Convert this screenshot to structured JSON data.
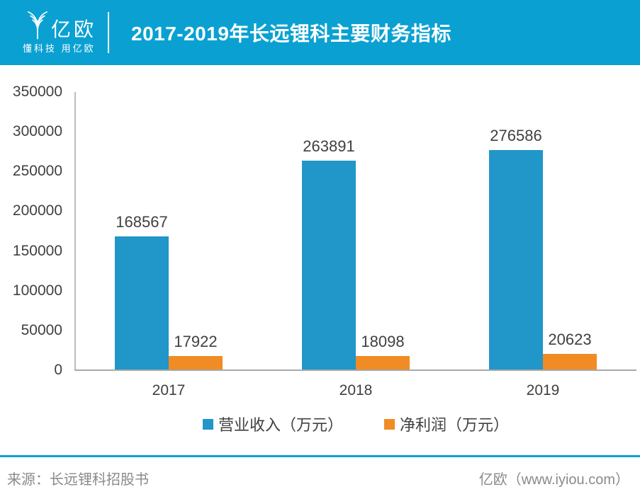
{
  "header": {
    "brand": "亿欧",
    "tagline": "懂科技 用亿欧",
    "title": "2017-2019年长远锂科主要财务指标"
  },
  "chart_data": {
    "type": "bar",
    "title": "2017-2019年长远锂科主要财务指标",
    "categories": [
      "2017",
      "2018",
      "2019"
    ],
    "series": [
      {
        "name": "营业收入（万元）",
        "color": "#2196C8",
        "values": [
          168567,
          263891,
          276586
        ]
      },
      {
        "name": "净利润（万元）",
        "color": "#F08C23",
        "values": [
          17922,
          18098,
          20623
        ]
      }
    ],
    "ylim": [
      0,
      350000
    ],
    "yticks": [
      0,
      50000,
      100000,
      150000,
      200000,
      250000,
      300000,
      350000
    ],
    "grid": false,
    "legend_position": "bottom",
    "value_labels": true
  },
  "footer": {
    "source": "来源：长远锂科招股书",
    "credit": "亿欧（www.iyiou.com）"
  },
  "colors": {
    "accent": "#0AA1D2",
    "bar_blue": "#2196C8",
    "bar_orange": "#F08C23",
    "label_text": "#404040",
    "axis_line": "#A8A8A8",
    "footer_text": "#8A8A8A"
  }
}
